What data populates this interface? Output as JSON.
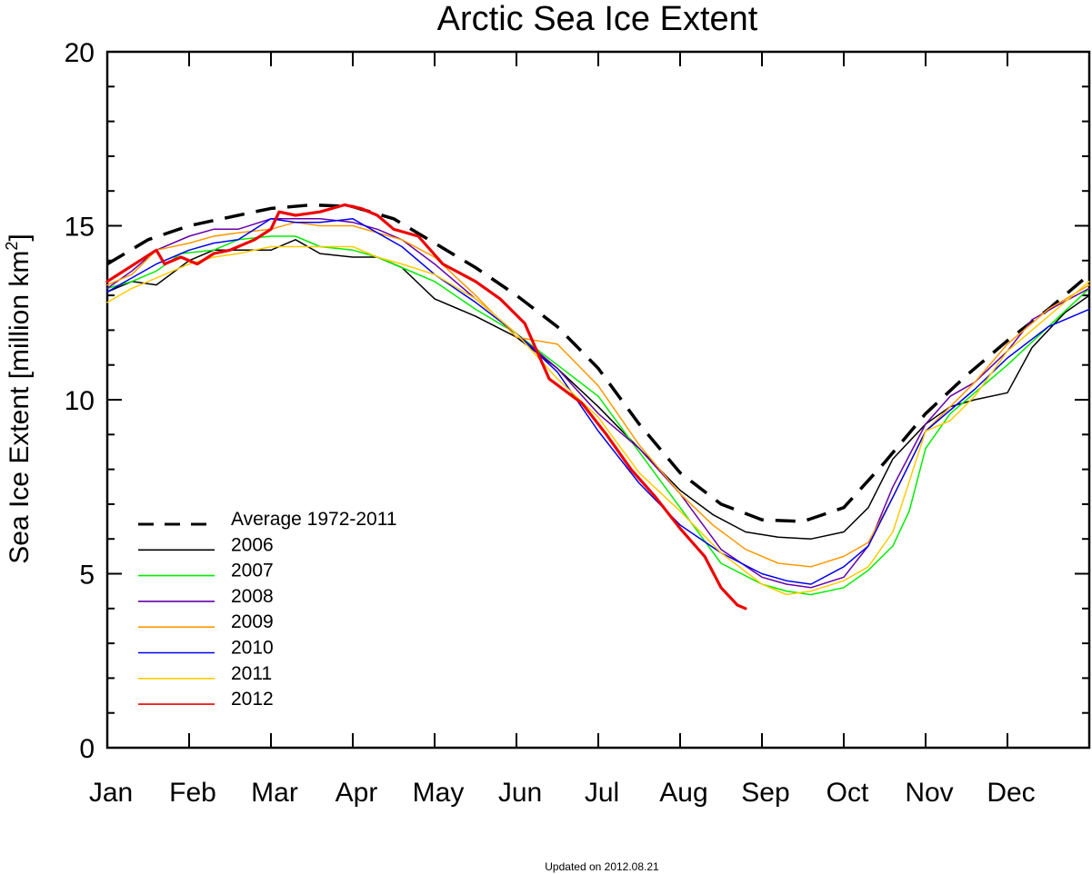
{
  "chart_data": {
    "type": "line",
    "title": "Arctic Sea Ice Extent",
    "ylabel_main": "Sea Ice Extent [million km",
    "ylabel_sup": "2",
    "ylabel_close": "]",
    "xlabel": "",
    "ylim": [
      0,
      20
    ],
    "xlim": [
      0,
      12
    ],
    "yticks": [
      0,
      5,
      10,
      15,
      20
    ],
    "ytick_labels": [
      "0",
      "5",
      "10",
      "15",
      "20"
    ],
    "y_minor_step": 1,
    "month_ticks": [
      "Jan",
      "Feb",
      "Mar",
      "Apr",
      "May",
      "Jun",
      "Jul",
      "Aug",
      "Sep",
      "Oct",
      "Nov",
      "Dec"
    ],
    "x_unit": "month (0 = start of Jan, 12 = end of Dec)",
    "legend_position": "bottom-left",
    "footer": "Updated on 2012.08.21",
    "series": [
      {
        "name": "Average 1972-2011",
        "color": "#000000",
        "dash": true,
        "width": 3.5,
        "points": [
          [
            0,
            13.9
          ],
          [
            0.5,
            14.6
          ],
          [
            1,
            15.0
          ],
          [
            1.5,
            15.25
          ],
          [
            2,
            15.5
          ],
          [
            2.5,
            15.6
          ],
          [
            3,
            15.55
          ],
          [
            3.5,
            15.2
          ],
          [
            4,
            14.5
          ],
          [
            4.5,
            13.8
          ],
          [
            5,
            13.0
          ],
          [
            5.5,
            12.1
          ],
          [
            6,
            10.9
          ],
          [
            6.5,
            9.3
          ],
          [
            7,
            7.9
          ],
          [
            7.5,
            7.0
          ],
          [
            8,
            6.55
          ],
          [
            8.5,
            6.5
          ],
          [
            9,
            6.9
          ],
          [
            9.5,
            8.2
          ],
          [
            10,
            9.6
          ],
          [
            10.5,
            10.7
          ],
          [
            11,
            11.7
          ],
          [
            11.5,
            12.6
          ],
          [
            12,
            13.6
          ]
        ]
      },
      {
        "name": "2006",
        "color": "#000000",
        "dash": false,
        "width": 1.5,
        "points": [
          [
            0,
            13.1
          ],
          [
            0.3,
            13.4
          ],
          [
            0.6,
            13.3
          ],
          [
            1,
            14.0
          ],
          [
            1.3,
            14.3
          ],
          [
            1.6,
            14.3
          ],
          [
            2,
            14.3
          ],
          [
            2.3,
            14.6
          ],
          [
            2.6,
            14.2
          ],
          [
            3,
            14.1
          ],
          [
            3.3,
            14.1
          ],
          [
            3.6,
            13.8
          ],
          [
            4,
            12.9
          ],
          [
            4.5,
            12.4
          ],
          [
            5,
            11.8
          ],
          [
            5.5,
            10.9
          ],
          [
            6,
            9.8
          ],
          [
            6.5,
            8.6
          ],
          [
            7,
            7.4
          ],
          [
            7.4,
            6.7
          ],
          [
            7.8,
            6.2
          ],
          [
            8.2,
            6.05
          ],
          [
            8.6,
            6.0
          ],
          [
            9,
            6.2
          ],
          [
            9.3,
            6.9
          ],
          [
            9.6,
            8.3
          ],
          [
            10,
            9.3
          ],
          [
            10.3,
            9.8
          ],
          [
            10.6,
            10.0
          ],
          [
            11,
            10.2
          ],
          [
            11.3,
            11.5
          ],
          [
            11.7,
            12.5
          ],
          [
            12,
            13.0
          ]
        ]
      },
      {
        "name": "2007",
        "color": "#00ee00",
        "dash": false,
        "width": 1.5,
        "points": [
          [
            0,
            13.2
          ],
          [
            0.3,
            13.4
          ],
          [
            0.6,
            13.7
          ],
          [
            0.9,
            14.2
          ],
          [
            1.3,
            14.3
          ],
          [
            1.6,
            14.6
          ],
          [
            2,
            14.7
          ],
          [
            2.3,
            14.7
          ],
          [
            2.6,
            14.4
          ],
          [
            3,
            14.3
          ],
          [
            3.3,
            14.1
          ],
          [
            3.6,
            13.8
          ],
          [
            4,
            13.4
          ],
          [
            4.5,
            12.6
          ],
          [
            5,
            11.9
          ],
          [
            5.5,
            11.0
          ],
          [
            6,
            10.1
          ],
          [
            6.5,
            8.5
          ],
          [
            7,
            6.9
          ],
          [
            7.5,
            5.3
          ],
          [
            8,
            4.7
          ],
          [
            8.3,
            4.5
          ],
          [
            8.6,
            4.4
          ],
          [
            9,
            4.6
          ],
          [
            9.3,
            5.1
          ],
          [
            9.6,
            5.8
          ],
          [
            9.8,
            6.8
          ],
          [
            10,
            8.6
          ],
          [
            10.3,
            9.6
          ],
          [
            10.6,
            10.2
          ],
          [
            11,
            11.0
          ],
          [
            11.5,
            12.1
          ],
          [
            12,
            13.2
          ]
        ]
      },
      {
        "name": "2008",
        "color": "#6600aa",
        "dash": false,
        "width": 1.5,
        "points": [
          [
            0,
            13.2
          ],
          [
            0.3,
            13.7
          ],
          [
            0.6,
            14.3
          ],
          [
            1,
            14.7
          ],
          [
            1.3,
            14.9
          ],
          [
            1.6,
            14.9
          ],
          [
            2,
            15.2
          ],
          [
            2.3,
            15.2
          ],
          [
            2.6,
            15.2
          ],
          [
            3,
            15.1
          ],
          [
            3.3,
            14.9
          ],
          [
            3.6,
            14.6
          ],
          [
            4,
            13.9
          ],
          [
            4.5,
            12.9
          ],
          [
            5,
            11.9
          ],
          [
            5.5,
            10.9
          ],
          [
            6,
            9.6
          ],
          [
            6.5,
            8.6
          ],
          [
            7,
            7.3
          ],
          [
            7.5,
            5.7
          ],
          [
            8,
            4.9
          ],
          [
            8.3,
            4.7
          ],
          [
            8.6,
            4.6
          ],
          [
            9,
            4.9
          ],
          [
            9.3,
            5.8
          ],
          [
            9.6,
            7.5
          ],
          [
            10,
            9.3
          ],
          [
            10.3,
            10.1
          ],
          [
            10.6,
            10.5
          ],
          [
            11,
            11.4
          ],
          [
            11.3,
            12.3
          ],
          [
            11.6,
            12.7
          ],
          [
            12,
            13.2
          ]
        ]
      },
      {
        "name": "2009",
        "color": "#ff9900",
        "dash": false,
        "width": 1.5,
        "points": [
          [
            0,
            13.3
          ],
          [
            0.3,
            13.6
          ],
          [
            0.6,
            14.3
          ],
          [
            1,
            14.5
          ],
          [
            1.3,
            14.7
          ],
          [
            1.6,
            14.8
          ],
          [
            2,
            14.9
          ],
          [
            2.3,
            15.1
          ],
          [
            2.6,
            15.0
          ],
          [
            3,
            15.0
          ],
          [
            3.3,
            14.8
          ],
          [
            3.6,
            14.6
          ],
          [
            4,
            14.1
          ],
          [
            4.5,
            13.0
          ],
          [
            5,
            11.8
          ],
          [
            5.5,
            11.6
          ],
          [
            6,
            10.4
          ],
          [
            6.5,
            8.7
          ],
          [
            7,
            7.3
          ],
          [
            7.4,
            6.4
          ],
          [
            7.8,
            5.7
          ],
          [
            8.2,
            5.3
          ],
          [
            8.6,
            5.2
          ],
          [
            9,
            5.5
          ],
          [
            9.3,
            5.9
          ],
          [
            9.6,
            7.2
          ],
          [
            10,
            9.1
          ],
          [
            10.3,
            9.8
          ],
          [
            10.6,
            10.5
          ],
          [
            11,
            11.6
          ],
          [
            11.5,
            12.6
          ],
          [
            12,
            13.3
          ]
        ]
      },
      {
        "name": "2010",
        "color": "#0000ee",
        "dash": false,
        "width": 1.5,
        "points": [
          [
            0,
            13.1
          ],
          [
            0.3,
            13.5
          ],
          [
            0.6,
            13.9
          ],
          [
            1,
            14.3
          ],
          [
            1.3,
            14.5
          ],
          [
            1.6,
            14.6
          ],
          [
            2,
            15.2
          ],
          [
            2.3,
            15.1
          ],
          [
            2.6,
            15.1
          ],
          [
            3,
            15.2
          ],
          [
            3.3,
            14.8
          ],
          [
            3.6,
            14.4
          ],
          [
            4,
            13.6
          ],
          [
            4.5,
            12.8
          ],
          [
            5,
            11.9
          ],
          [
            5.5,
            10.8
          ],
          [
            6,
            9.1
          ],
          [
            6.5,
            7.6
          ],
          [
            7,
            6.4
          ],
          [
            7.5,
            5.6
          ],
          [
            8,
            5.0
          ],
          [
            8.3,
            4.8
          ],
          [
            8.6,
            4.7
          ],
          [
            9,
            5.2
          ],
          [
            9.3,
            5.8
          ],
          [
            9.6,
            7.2
          ],
          [
            10,
            9.1
          ],
          [
            10.3,
            9.7
          ],
          [
            10.6,
            10.3
          ],
          [
            11,
            11.2
          ],
          [
            11.5,
            12.1
          ],
          [
            12,
            12.6
          ]
        ]
      },
      {
        "name": "2011",
        "color": "#ffcc00",
        "dash": false,
        "width": 1.5,
        "points": [
          [
            0,
            12.8
          ],
          [
            0.3,
            13.2
          ],
          [
            0.6,
            13.5
          ],
          [
            1,
            13.9
          ],
          [
            1.3,
            14.1
          ],
          [
            1.6,
            14.2
          ],
          [
            2,
            14.4
          ],
          [
            2.3,
            14.4
          ],
          [
            2.6,
            14.4
          ],
          [
            3,
            14.4
          ],
          [
            3.3,
            14.1
          ],
          [
            3.6,
            13.9
          ],
          [
            4,
            13.6
          ],
          [
            4.5,
            12.9
          ],
          [
            5,
            11.9
          ],
          [
            5.5,
            10.6
          ],
          [
            6,
            9.5
          ],
          [
            6.5,
            7.9
          ],
          [
            7,
            6.8
          ],
          [
            7.5,
            5.6
          ],
          [
            8,
            4.7
          ],
          [
            8.3,
            4.4
          ],
          [
            8.6,
            4.5
          ],
          [
            9,
            4.8
          ],
          [
            9.3,
            5.2
          ],
          [
            9.6,
            6.2
          ],
          [
            10,
            9.1
          ],
          [
            10.3,
            9.4
          ],
          [
            10.6,
            10.1
          ],
          [
            11,
            11.4
          ],
          [
            11.5,
            12.4
          ],
          [
            12,
            13.4
          ]
        ]
      },
      {
        "name": "2012",
        "color": "#ee0000",
        "dash": false,
        "width": 3.2,
        "points": [
          [
            0,
            13.4
          ],
          [
            0.2,
            13.7
          ],
          [
            0.4,
            14.0
          ],
          [
            0.6,
            14.3
          ],
          [
            0.7,
            13.9
          ],
          [
            0.9,
            14.1
          ],
          [
            1.1,
            13.9
          ],
          [
            1.3,
            14.2
          ],
          [
            1.5,
            14.3
          ],
          [
            1.8,
            14.6
          ],
          [
            2,
            14.9
          ],
          [
            2.1,
            15.4
          ],
          [
            2.3,
            15.3
          ],
          [
            2.6,
            15.4
          ],
          [
            2.9,
            15.6
          ],
          [
            3.1,
            15.5
          ],
          [
            3.3,
            15.3
          ],
          [
            3.5,
            14.9
          ],
          [
            3.8,
            14.7
          ],
          [
            4.1,
            13.9
          ],
          [
            4.5,
            13.4
          ],
          [
            4.8,
            12.9
          ],
          [
            5.1,
            12.2
          ],
          [
            5.4,
            10.6
          ],
          [
            5.8,
            9.9
          ],
          [
            6.1,
            9.0
          ],
          [
            6.4,
            8.0
          ],
          [
            6.7,
            7.2
          ],
          [
            7.0,
            6.3
          ],
          [
            7.3,
            5.5
          ],
          [
            7.5,
            4.6
          ],
          [
            7.7,
            4.1
          ],
          [
            7.8,
            4.0
          ]
        ]
      }
    ]
  }
}
